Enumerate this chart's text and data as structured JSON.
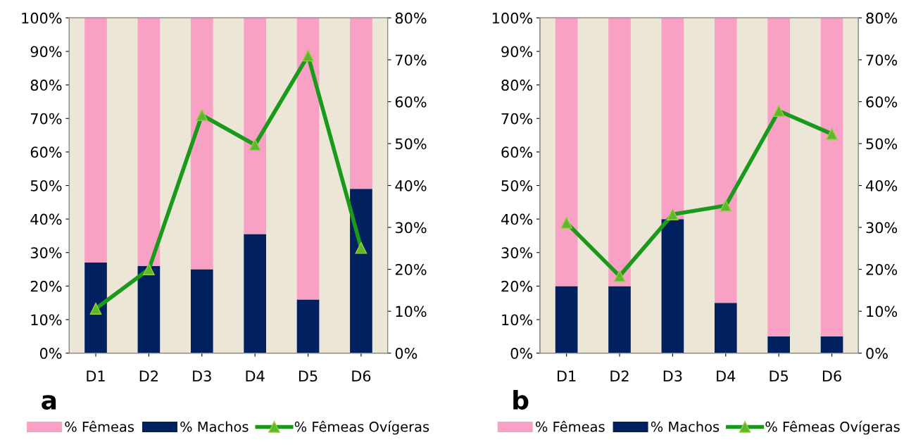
{
  "chart_data": [
    {
      "type": "bar",
      "stacked": true,
      "annotations": [
        "a"
      ],
      "categories": [
        "D1",
        "D2",
        "D3",
        "D4",
        "D5",
        "D6"
      ],
      "legend": "bottom",
      "marker": "triangle",
      "series": [
        {
          "name": "% Machos",
          "color": "#00205f",
          "values": [
            27,
            26,
            25,
            35.5,
            16,
            49
          ]
        },
        {
          "name": "% Fêmeas",
          "color": "#f8a1c4",
          "values": [
            73,
            74,
            75,
            64.5,
            84,
            51
          ]
        },
        {
          "name": "% Fêmeas Ovígeras",
          "type": "line",
          "axis": "y2",
          "color": "#1a9a1a",
          "values": [
            10.6,
            20.0,
            56.8,
            49.7,
            71.0,
            25.1
          ]
        }
      ],
      "ylim": [
        0,
        100
      ],
      "yticks": [
        {
          "value": 0,
          "label": "0%"
        },
        {
          "value": 10,
          "label": "10%"
        },
        {
          "value": 20,
          "label": "20%"
        },
        {
          "value": 30,
          "label": "30%"
        },
        {
          "value": 40,
          "label": "40%"
        },
        {
          "value": 50,
          "label": "50%"
        },
        {
          "value": 60,
          "label": "60%"
        },
        {
          "value": 70,
          "label": "70%"
        },
        {
          "value": 80,
          "label": "80%"
        },
        {
          "value": 90,
          "label": "90%"
        },
        {
          "value": 100,
          "label": "100%"
        }
      ],
      "y2lim": [
        0,
        80
      ],
      "y2ticks": [
        {
          "value": 0,
          "label": "0%"
        },
        {
          "value": 10,
          "label": "10%"
        },
        {
          "value": 20,
          "label": "20%"
        },
        {
          "value": 30,
          "label": "30%"
        },
        {
          "value": 40,
          "label": "40%"
        },
        {
          "value": 50,
          "label": "50%"
        },
        {
          "value": 60,
          "label": "60%"
        },
        {
          "value": 70,
          "label": "70%"
        },
        {
          "value": 80,
          "label": "80%"
        }
      ]
    },
    {
      "type": "bar",
      "stacked": true,
      "annotations": [
        "b"
      ],
      "categories": [
        "D1",
        "D2",
        "D3",
        "D4",
        "D5",
        "D6"
      ],
      "legend": "bottom",
      "marker": "triangle",
      "series": [
        {
          "name": "% Machos",
          "color": "#00205f",
          "values": [
            20,
            20,
            40,
            15,
            5,
            5
          ]
        },
        {
          "name": "% Fêmeas",
          "color": "#f8a1c4",
          "values": [
            80,
            80,
            60,
            85,
            95,
            95
          ]
        },
        {
          "name": "% Fêmeas Ovígeras",
          "type": "line",
          "axis": "y2",
          "color": "#1a9a1a",
          "values": [
            31.1,
            18.4,
            33.1,
            35.2,
            57.8,
            52.3
          ]
        }
      ],
      "ylim": [
        0,
        100
      ],
      "yticks": [
        {
          "value": 0,
          "label": "0%"
        },
        {
          "value": 10,
          "label": "10%"
        },
        {
          "value": 20,
          "label": "20%"
        },
        {
          "value": 30,
          "label": "30%"
        },
        {
          "value": 40,
          "label": "40%"
        },
        {
          "value": 50,
          "label": "50%"
        },
        {
          "value": 60,
          "label": "60%"
        },
        {
          "value": 70,
          "label": "70%"
        },
        {
          "value": 80,
          "label": "80%"
        },
        {
          "value": 90,
          "label": "90%"
        },
        {
          "value": 100,
          "label": "100%"
        }
      ],
      "y2lim": [
        0,
        80
      ],
      "y2ticks": [
        {
          "value": 0,
          "label": "0%"
        },
        {
          "value": 10,
          "label": "10%"
        },
        {
          "value": 20,
          "label": "20%"
        },
        {
          "value": 30,
          "label": "30%"
        },
        {
          "value": 40,
          "label": "40%"
        },
        {
          "value": 50,
          "label": "50%"
        },
        {
          "value": 60,
          "label": "60%"
        },
        {
          "value": 70,
          "label": "70%"
        },
        {
          "value": 80,
          "label": "80%"
        }
      ]
    }
  ]
}
